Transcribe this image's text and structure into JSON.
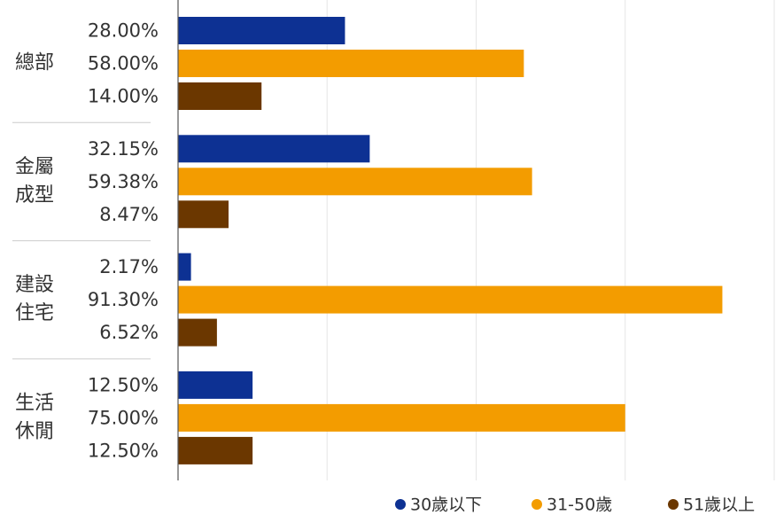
{
  "chart_data": {
    "type": "bar",
    "orientation": "horizontal",
    "categories": [
      [
        "總部"
      ],
      [
        "金屬",
        "成型"
      ],
      [
        "建設",
        "住宅"
      ],
      [
        "生活",
        "休閒"
      ]
    ],
    "series": [
      {
        "name": "30歲以下",
        "color": "#0d3193",
        "values": [
          28.0,
          32.15,
          2.17,
          12.5
        ],
        "labels": [
          "28.00%",
          "32.15%",
          "2.17%",
          "12.50%"
        ]
      },
      {
        "name": "31-50歲",
        "color": "#f39c00",
        "values": [
          58.0,
          59.38,
          91.3,
          75.0
        ],
        "labels": [
          "58.00%",
          "59.38%",
          "91.30%",
          "75.00%"
        ]
      },
      {
        "name": "51歲以上",
        "color": "#6b3700",
        "values": [
          14.0,
          8.47,
          6.52,
          12.5
        ],
        "labels": [
          "14.00%",
          "8.47%",
          "6.52%",
          "12.50%"
        ]
      }
    ],
    "xlim": [
      0,
      100
    ],
    "grid": true,
    "legend": "bottom-right"
  }
}
